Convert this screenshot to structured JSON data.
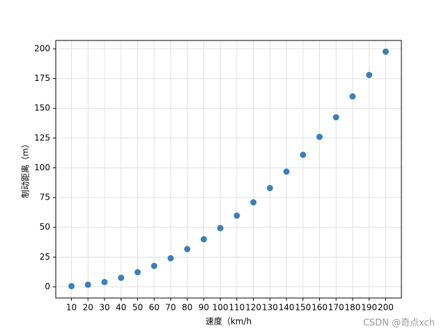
{
  "chart_data": {
    "type": "scatter",
    "xlabel": "速度（km/h",
    "ylabel": "制动距离（m）",
    "x": [
      10,
      20,
      30,
      40,
      50,
      60,
      70,
      80,
      90,
      100,
      110,
      120,
      130,
      140,
      150,
      160,
      170,
      180,
      190,
      200
    ],
    "values": [
      0.6,
      1.8,
      4,
      7.6,
      12.3,
      17.6,
      24,
      31.7,
      40,
      49.3,
      59.8,
      71,
      83,
      96.8,
      110.9,
      126,
      142.5,
      160,
      178,
      197.6
    ],
    "color": "#3a80b9",
    "xlim": [
      0.5,
      209.5
    ],
    "xticks": [
      10,
      20,
      30,
      40,
      50,
      60,
      70,
      80,
      90,
      100,
      110,
      120,
      130,
      140,
      150,
      160,
      170,
      180,
      190,
      200
    ],
    "ylim": [
      -9.4,
      207
    ],
    "yticks": [
      0,
      25,
      50,
      75,
      100,
      125,
      150,
      175,
      200
    ],
    "grid": true,
    "watermark": "CSDN @奇点xch"
  }
}
